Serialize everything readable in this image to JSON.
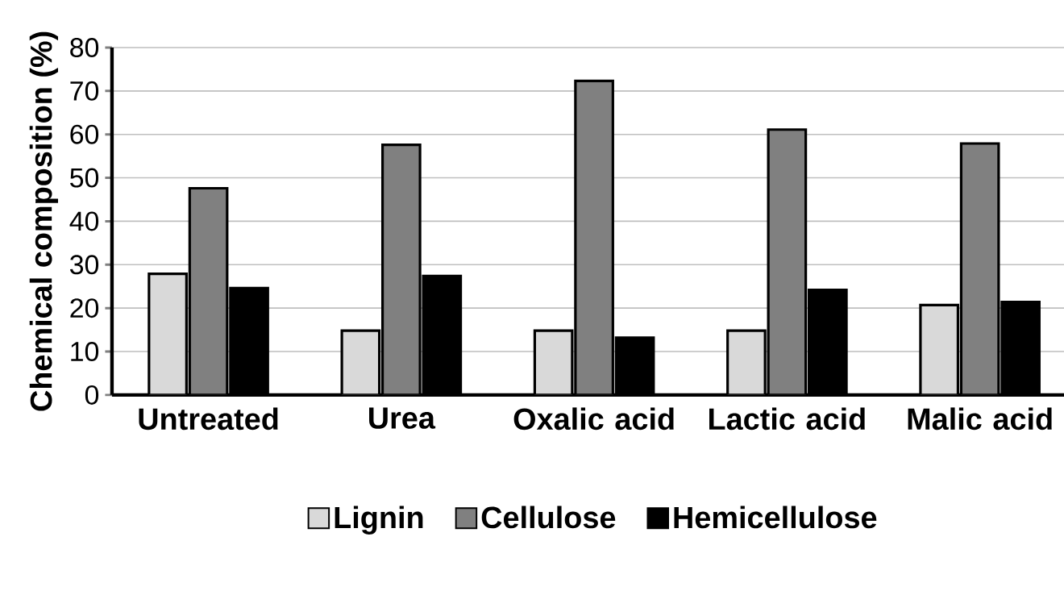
{
  "chart_data": {
    "type": "bar",
    "ylabel": "Chemical composition (%)",
    "categories": [
      "Untreated",
      "Urea",
      "Oxalic acid",
      "Lactic acid",
      "Malic acid"
    ],
    "series": [
      {
        "name": "Lignin",
        "color": "#d9d9d9",
        "values": [
          27.9,
          14.8,
          14.8,
          14.8,
          20.7
        ]
      },
      {
        "name": "Cellulose",
        "color": "#808080",
        "values": [
          47.6,
          57.6,
          72.3,
          61.1,
          57.9
        ]
      },
      {
        "name": "Hemicellulose",
        "color": "#000000",
        "values": [
          24.6,
          27.4,
          13.2,
          24.2,
          21.4
        ]
      }
    ],
    "ylim": [
      0,
      80
    ],
    "yticks": [
      0,
      10,
      20,
      30,
      40,
      50,
      60,
      70,
      80
    ],
    "grid": "y",
    "legend": "bottom"
  }
}
